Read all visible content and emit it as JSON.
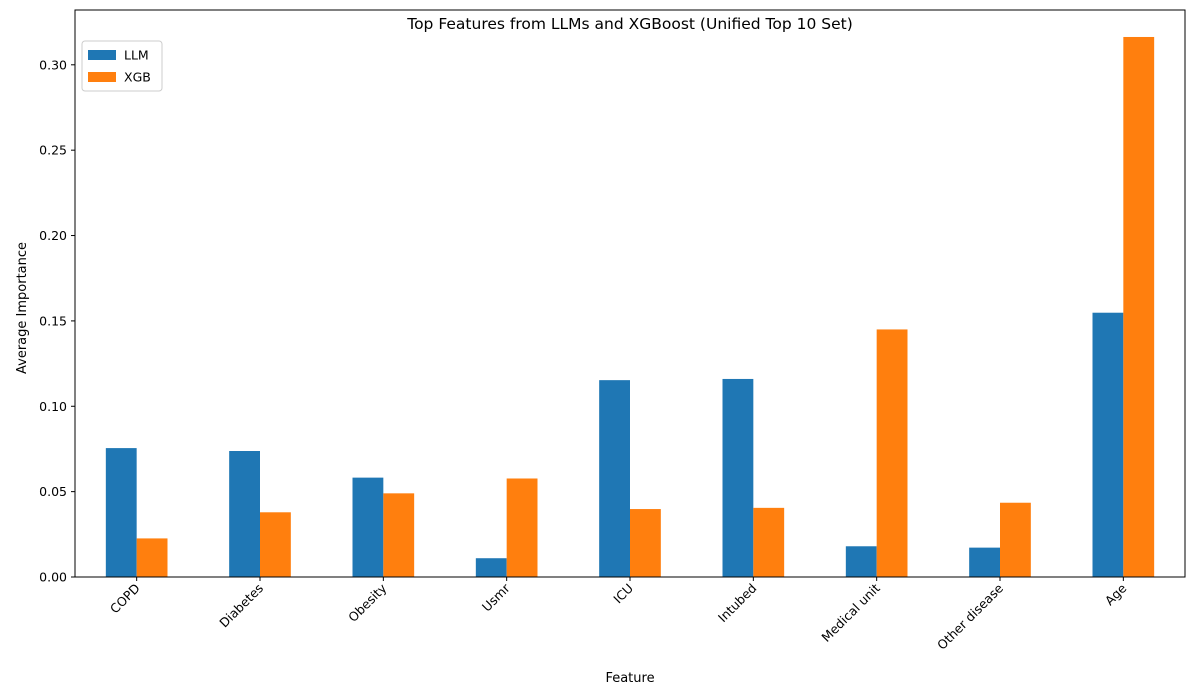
{
  "chart_data": {
    "type": "bar",
    "title": "Top Features from LLMs and XGBoost (Unified Top 10 Set)",
    "xlabel": "Feature",
    "ylabel": "Average Importance",
    "categories": [
      "COPD",
      "Diabetes",
      "Obesity",
      "Usmr",
      "ICU",
      "Intubed",
      "Medical unit",
      "Other disease",
      "Age"
    ],
    "series": [
      {
        "name": "LLM",
        "color": "#1f77b4",
        "values": [
          0.0755,
          0.0738,
          0.0582,
          0.011,
          0.1153,
          0.116,
          0.018,
          0.0172,
          0.1548
        ]
      },
      {
        "name": "XGB",
        "color": "#ff7f0e",
        "values": [
          0.0226,
          0.0379,
          0.049,
          0.0577,
          0.0398,
          0.0405,
          0.145,
          0.0435,
          0.3163
        ]
      }
    ],
    "ylim": [
      0,
      0.3321
    ],
    "yticks": [
      0.0,
      0.05,
      0.1,
      0.15,
      0.2,
      0.25,
      0.3
    ],
    "ytick_labels": [
      "0.00",
      "0.05",
      "0.10",
      "0.15",
      "0.20",
      "0.25",
      "0.30"
    ],
    "legend_position": "top-left",
    "grid": false
  }
}
